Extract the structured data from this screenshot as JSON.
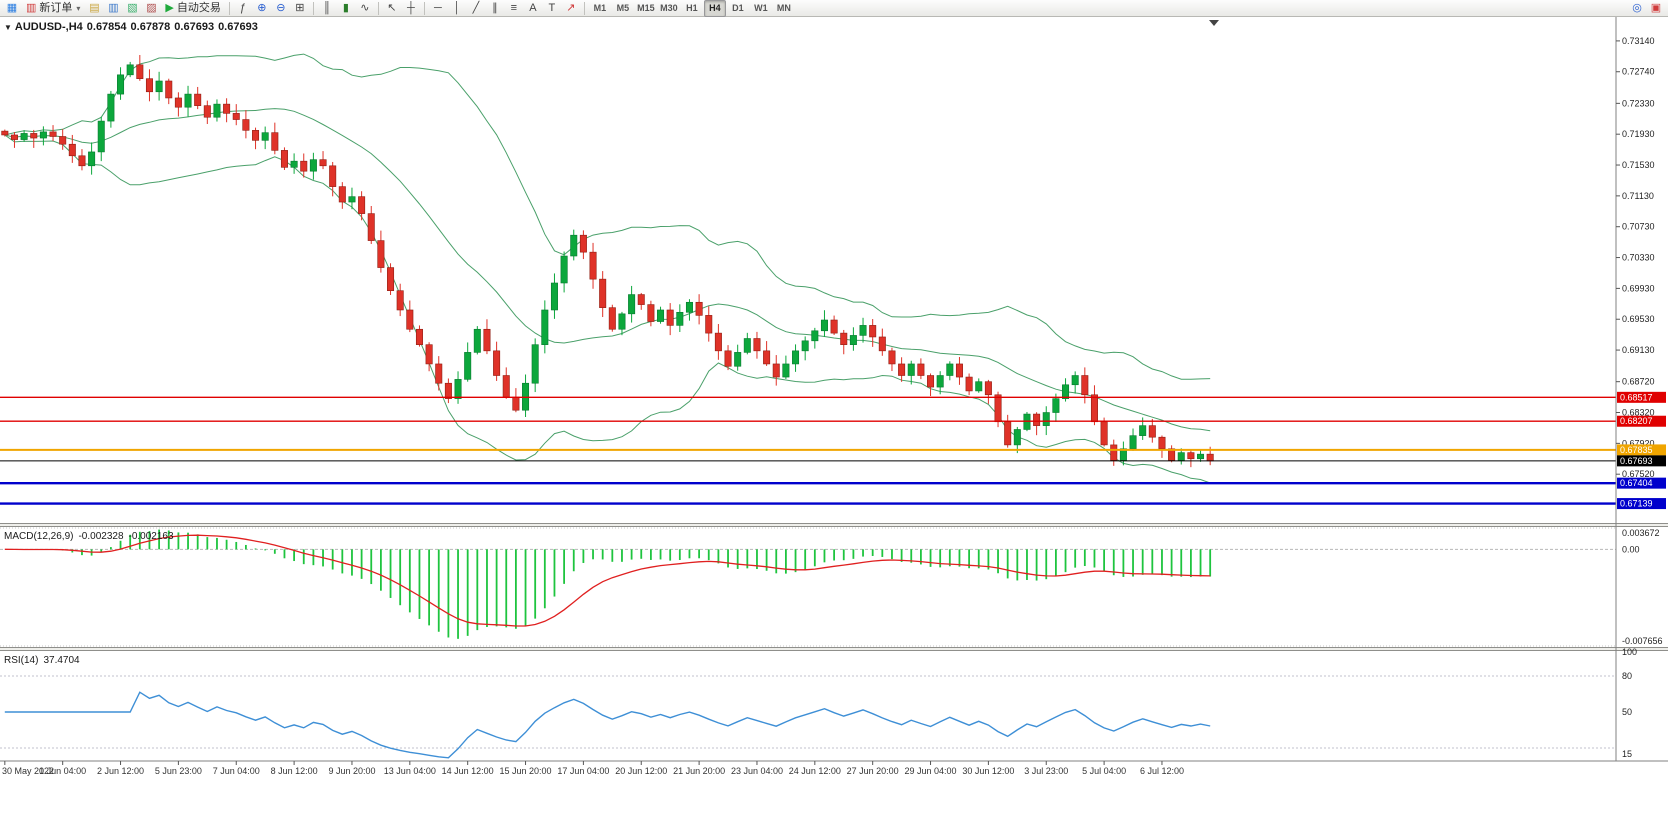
{
  "toolbar": {
    "timeframes": [
      "M1",
      "M5",
      "M15",
      "M30",
      "H1",
      "H4",
      "D1",
      "W1",
      "MN"
    ],
    "active_timeframe": "H4",
    "groups": [
      {
        "type": "icons",
        "items": [
          {
            "name": "new-chart-icon",
            "glyph": "▦",
            "color": "#2a7de1"
          }
        ]
      },
      {
        "type": "labelbtn",
        "name": "new-order-button",
        "icon": "▥",
        "icon_color": "#d03a3a",
        "label": "新订单",
        "caret": true
      },
      {
        "type": "icons",
        "items": [
          {
            "name": "charts-cascade-icon",
            "glyph": "▤",
            "color": "#c9a43c"
          },
          {
            "name": "market-watch-icon",
            "glyph": "▥",
            "color": "#3c78c9"
          },
          {
            "name": "navigator-icon",
            "glyph": "▧",
            "color": "#3cb06e"
          },
          {
            "name": "terminal-icon",
            "glyph": "▨",
            "color": "#b05050"
          }
        ]
      },
      {
        "type": "labelbtn",
        "name": "autotrade-button",
        "icon": "▶",
        "icon_color": "#1faa3c",
        "label": "自动交易"
      },
      {
        "type": "sep"
      },
      {
        "type": "icons",
        "items": [
          {
            "name": "indicators-icon",
            "glyph": "ƒ",
            "color": "#444444"
          },
          {
            "name": "zoom-in-icon",
            "glyph": "⊕",
            "color": "#2a5fd0"
          },
          {
            "name": "zoom-out-icon",
            "glyph": "⊖",
            "color": "#2a5fd0"
          },
          {
            "name": "tile-windows-icon",
            "glyph": "⊞",
            "color": "#444444"
          }
        ]
      },
      {
        "type": "sep"
      },
      {
        "type": "icons",
        "items": [
          {
            "name": "bars-mode-icon",
            "glyph": "║",
            "color": "#444444"
          },
          {
            "name": "candles-mode-icon",
            "glyph": "▮",
            "color": "#2a7d2a"
          },
          {
            "name": "line-mode-icon",
            "glyph": "∿",
            "color": "#444444"
          }
        ]
      },
      {
        "type": "sep"
      },
      {
        "type": "icons",
        "items": [
          {
            "name": "cursor-icon",
            "glyph": "↖",
            "color": "#444444"
          },
          {
            "name": "crosshair-icon",
            "glyph": "┼",
            "color": "#444444"
          }
        ]
      },
      {
        "type": "sep"
      },
      {
        "type": "icons",
        "items": [
          {
            "name": "hline-tool-icon",
            "glyph": "─",
            "color": "#444444"
          },
          {
            "name": "vline-tool-icon",
            "glyph": "│",
            "color": "#444444"
          },
          {
            "name": "trendline-tool-icon",
            "glyph": "╱",
            "color": "#444444"
          },
          {
            "name": "channel-tool-icon",
            "glyph": "∥",
            "color": "#444444"
          },
          {
            "name": "fibonacci-tool-icon",
            "glyph": "≡",
            "color": "#444444"
          },
          {
            "name": "text-tool-icon",
            "glyph": "A",
            "color": "#444444"
          },
          {
            "name": "label-tool-icon",
            "glyph": "T",
            "color": "#444444"
          },
          {
            "name": "arrows-tool-icon",
            "glyph": "↗",
            "color": "#d03a3a"
          }
        ]
      },
      {
        "type": "sep"
      },
      {
        "type": "timeframes"
      },
      {
        "type": "spacer"
      },
      {
        "type": "icons",
        "items": [
          {
            "name": "search-icon",
            "glyph": "◎",
            "color": "#2a5fd0"
          },
          {
            "name": "community-icon",
            "glyph": "▣",
            "color": "#d03a3a"
          }
        ]
      }
    ]
  },
  "chart": {
    "menu_glyph": "▼",
    "symbol_label": "AUDUSD-,H4",
    "ohlc": {
      "open": "0.67854",
      "high": "0.67878",
      "low": "0.67693",
      "close": "0.67693"
    },
    "price_axis": [
      "0.73140",
      "0.72740",
      "0.72330",
      "0.71930",
      "0.71530",
      "0.71130",
      "0.70730",
      "0.70330",
      "0.69930",
      "0.69530",
      "0.69130",
      "0.68720",
      "0.68320",
      "0.67920",
      "0.67520",
      "0.67120"
    ],
    "time_axis": [
      "30 May 2022",
      "1 Jun 04:00",
      "2 Jun 12:00",
      "5 Jun 23:00",
      "7 Jun 04:00",
      "8 Jun 12:00",
      "9 Jun 20:00",
      "13 Jun 04:00",
      "14 Jun 12:00",
      "15 Jun 20:00",
      "17 Jun 04:00",
      "20 Jun 12:00",
      "21 Jun 20:00",
      "23 Jun 04:00",
      "24 Jun 12:00",
      "27 Jun 20:00",
      "29 Jun 04:00",
      "30 Jun 12:00",
      "3 Jul 23:00",
      "5 Jul 04:00",
      "6 Jul 12:00"
    ],
    "hlines": [
      {
        "value": 0.68517,
        "label": "0.68517",
        "color": "#e00000",
        "width": 1.4
      },
      {
        "value": 0.68207,
        "label": "0.68207",
        "color": "#e00000",
        "width": 1.4
      },
      {
        "value": 0.67835,
        "label": "0.67835",
        "color": "#f0a500",
        "width": 2
      },
      {
        "value": 0.67404,
        "label": "0.67404",
        "color": "#0000cc",
        "width": 2.4
      },
      {
        "value": 0.67139,
        "label": "0.67139",
        "color": "#0000cc",
        "width": 2.4
      }
    ],
    "current_price": {
      "value": 0.67693,
      "label": "0.67693",
      "color": "#000000"
    }
  },
  "indicators": {
    "macd": {
      "title": "MACD(12,26,9)",
      "value_main": "-0.002328",
      "value_signal": "-0.002163",
      "scale": [
        "0.003672",
        "0.00",
        "-0.007656"
      ]
    },
    "rsi": {
      "title": "RSI(14)",
      "value": "37.4704",
      "scale": [
        "100",
        "80",
        "50",
        "15"
      ],
      "levels": [
        80,
        20
      ]
    }
  },
  "chart_data": {
    "type": "candlestick",
    "symbol": "AUDUSD",
    "timeframe": "H4",
    "title": "AUDUSD-,H4",
    "y_range": [
      0.669,
      0.7345
    ],
    "overlays": {
      "bollinger_period": 20,
      "bollinger_dev": 2
    },
    "macd_params": {
      "fast": 12,
      "slow": 26,
      "signal": 9,
      "current_main": -0.002328,
      "current_signal": -0.002163
    },
    "rsi_params": {
      "period": 14,
      "current": 37.4704
    },
    "colors": {
      "up": "#0ca73c",
      "up_border": "#067a2e",
      "down": "#df3228",
      "down_border": "#8f1d12",
      "bollinger": "#4aa06a",
      "macd_hist": "#1ec43e",
      "macd_signal": "#e02020",
      "rsi_line": "#3e8fd6"
    },
    "closes": [
      0.7192,
      0.7186,
      0.7194,
      0.7188,
      0.7196,
      0.719,
      0.718,
      0.7165,
      0.7152,
      0.717,
      0.721,
      0.7245,
      0.727,
      0.7283,
      0.7265,
      0.7248,
      0.7262,
      0.724,
      0.7228,
      0.7245,
      0.723,
      0.7215,
      0.7232,
      0.722,
      0.7212,
      0.7198,
      0.7185,
      0.7195,
      0.7172,
      0.715,
      0.7158,
      0.7145,
      0.716,
      0.7152,
      0.7125,
      0.7105,
      0.7112,
      0.709,
      0.7055,
      0.702,
      0.699,
      0.6965,
      0.694,
      0.692,
      0.6895,
      0.687,
      0.685,
      0.6875,
      0.691,
      0.694,
      0.6912,
      0.688,
      0.6852,
      0.6835,
      0.687,
      0.692,
      0.6965,
      0.7,
      0.7035,
      0.7062,
      0.704,
      0.7005,
      0.6968,
      0.694,
      0.696,
      0.6985,
      0.6972,
      0.695,
      0.6965,
      0.6945,
      0.6962,
      0.6975,
      0.6958,
      0.6935,
      0.6912,
      0.6892,
      0.691,
      0.6928,
      0.6912,
      0.6895,
      0.6878,
      0.6895,
      0.6912,
      0.6925,
      0.6938,
      0.6952,
      0.6935,
      0.692,
      0.6932,
      0.6945,
      0.693,
      0.6912,
      0.6895,
      0.688,
      0.6895,
      0.688,
      0.6865,
      0.688,
      0.6895,
      0.6878,
      0.686,
      0.6872,
      0.6855,
      0.682,
      0.679,
      0.681,
      0.683,
      0.6815,
      0.6832,
      0.685,
      0.6868,
      0.688,
      0.6855,
      0.682,
      0.679,
      0.677,
      0.6785,
      0.6802,
      0.6815,
      0.68,
      0.6785,
      0.677,
      0.678,
      0.6772,
      0.6778,
      0.67693
    ]
  }
}
